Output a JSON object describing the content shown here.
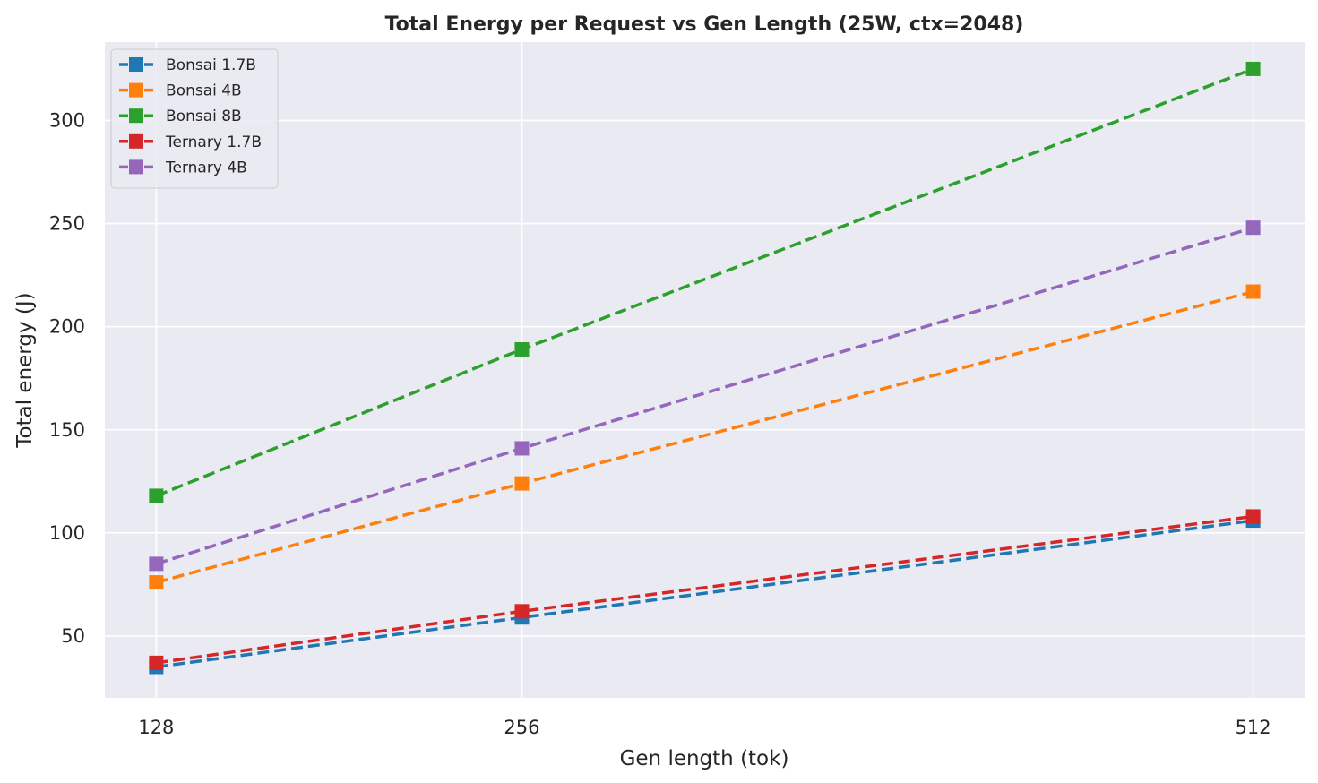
{
  "chart_data": {
    "type": "line",
    "title": "Total Energy per Request vs Gen Length (25W, ctx=2048)",
    "xlabel": "Gen length (tok)",
    "ylabel": "Total energy (J)",
    "x": [
      128,
      256,
      512
    ],
    "x_tick_labels": [
      "128",
      "256",
      "512"
    ],
    "y_ticks": [
      50,
      100,
      150,
      200,
      250,
      300
    ],
    "y_tick_labels": [
      "50",
      "100",
      "150",
      "200",
      "250",
      "300"
    ],
    "ylim": [
      20,
      338
    ],
    "xlim": [
      110,
      530
    ],
    "grid": true,
    "legend_position": "top-left",
    "line_style": "dashed",
    "marker": "square",
    "series": [
      {
        "name": "Bonsai 1.7B",
        "color": "#1f77b4",
        "values": [
          35,
          59,
          106
        ]
      },
      {
        "name": "Bonsai 4B",
        "color": "#ff7f0e",
        "values": [
          76,
          124,
          217
        ]
      },
      {
        "name": "Bonsai 8B",
        "color": "#2ca02c",
        "values": [
          118,
          189,
          325
        ]
      },
      {
        "name": "Ternary 1.7B",
        "color": "#d62728",
        "values": [
          37,
          62,
          108
        ]
      },
      {
        "name": "Ternary 4B",
        "color": "#9467bd",
        "values": [
          85,
          141,
          248
        ]
      }
    ]
  }
}
